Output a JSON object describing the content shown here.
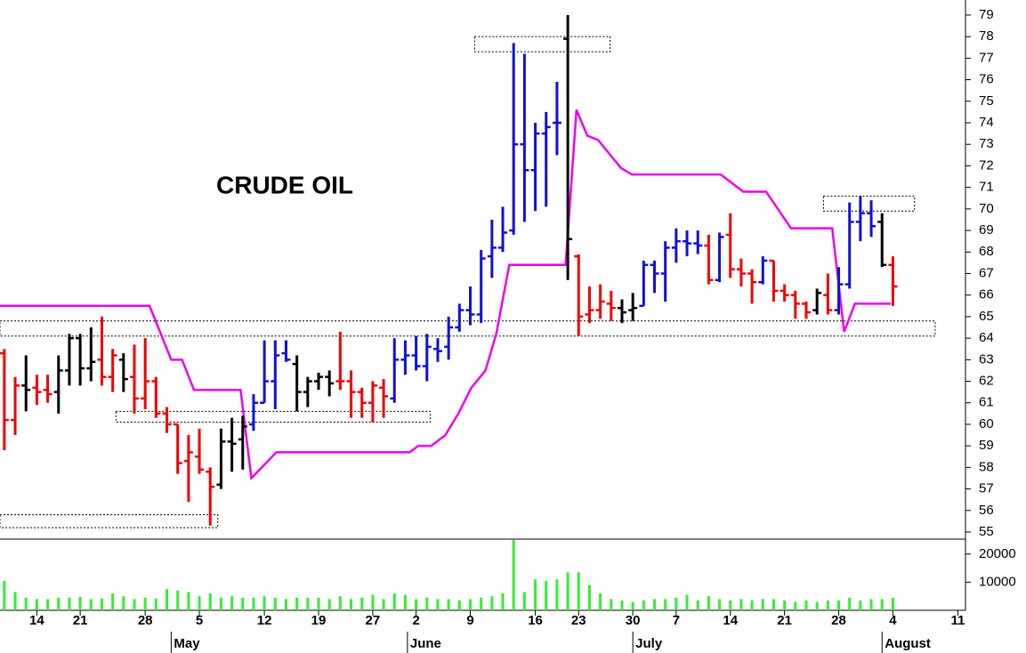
{
  "chart_data": [
    {
      "type": "ohlc",
      "title": "CRUDE OIL",
      "x": [
        -3,
        -2,
        -1,
        0,
        1,
        2,
        3,
        4,
        5,
        6,
        7,
        8,
        9,
        10,
        11,
        12,
        13,
        14,
        15,
        16,
        17,
        18,
        19,
        20,
        21,
        22,
        23,
        24,
        25,
        26,
        27,
        28,
        29,
        30,
        31,
        32,
        33,
        34,
        35,
        36,
        37,
        38,
        39,
        40,
        41,
        42,
        43,
        44,
        45,
        46,
        47,
        48,
        49,
        50,
        51,
        52,
        53,
        54,
        55,
        56,
        57,
        58,
        59,
        60,
        61,
        62,
        63,
        64,
        65,
        66,
        67,
        68,
        69,
        70,
        71,
        72,
        73,
        74,
        75,
        76,
        77,
        78,
        79
      ],
      "open": [
        63.3,
        60.2,
        61.8,
        61.7,
        61.6,
        61.5,
        62.5,
        64,
        62.6,
        63,
        62.2,
        63,
        62.2,
        61.2,
        62,
        60.5,
        60,
        58.3,
        58.5,
        57.8,
        57.2,
        59.2,
        59.3,
        60,
        61,
        62,
        63.3,
        62.8,
        61.5,
        62,
        62.2,
        62,
        62,
        61.5,
        61,
        61.7,
        61.2,
        63,
        63.2,
        62.7,
        63.5,
        63.6,
        64.5,
        65.3,
        65.1,
        67.8,
        68.2,
        69,
        73,
        71.8,
        73.5,
        74,
        77.9,
        67.8,
        65.1,
        65.3,
        65.6,
        65.4,
        65.3,
        65.5,
        67.4,
        67,
        68.2,
        68.5,
        68.4,
        68.3,
        66.7,
        68.8,
        67.2,
        67,
        66.6,
        67.6,
        66.2,
        66,
        65.6,
        65.3,
        66,
        65.3,
        66.5,
        69.4,
        69.8,
        69.4,
        67.4
      ],
      "high": [
        63.5,
        62.2,
        63.2,
        62.3,
        62.3,
        63.2,
        64.2,
        64.2,
        64.5,
        65,
        63.5,
        63.3,
        63.7,
        64,
        62.2,
        60.8,
        60,
        59.5,
        59.8,
        58,
        59.8,
        60.3,
        60.4,
        61.4,
        63.9,
        63.9,
        63.9,
        63.2,
        62.2,
        62.4,
        62.5,
        64.3,
        62.5,
        61.7,
        62,
        62.1,
        64,
        63.9,
        64.1,
        64.2,
        64,
        65,
        65.6,
        66.4,
        68.1,
        69.5,
        70.1,
        77.7,
        77.2,
        74,
        74.5,
        75.9,
        79,
        67.9,
        66.4,
        66.5,
        66.2,
        65.8,
        66.1,
        67.6,
        67.6,
        68.5,
        69.1,
        69,
        69,
        68.8,
        68.9,
        69.8,
        67.7,
        67.2,
        67.8,
        67.6,
        66.5,
        66.2,
        65.7,
        66.3,
        67,
        67.3,
        70.3,
        70.6,
        70.4,
        69.8,
        67.8
      ],
      "low": [
        58.8,
        59.5,
        60.6,
        60.9,
        61,
        60.5,
        61.8,
        61.8,
        62,
        61.8,
        61.5,
        61.5,
        60.5,
        60.7,
        60.3,
        59.6,
        57.7,
        56.4,
        57.7,
        55.3,
        57,
        57.8,
        57.9,
        59.7,
        61,
        60.7,
        62.9,
        60.6,
        60.8,
        61.6,
        61.3,
        61.6,
        60.3,
        60.3,
        60.1,
        60.3,
        61,
        62.3,
        62.5,
        62,
        62.9,
        63,
        64.3,
        64.6,
        64.7,
        66.8,
        68,
        68.8,
        69.4,
        69.9,
        70.1,
        72.5,
        66.7,
        64.1,
        64.7,
        64.9,
        64.8,
        64.7,
        64.8,
        65.5,
        66.1,
        65.7,
        67.5,
        67.8,
        67.9,
        66.5,
        66.6,
        66.8,
        66.4,
        65.6,
        66.5,
        65.7,
        65.7,
        64.9,
        64.9,
        65.1,
        65.1,
        65.1,
        66.3,
        68.5,
        68.7,
        67.3,
        65.5
      ],
      "close": [
        60.2,
        61.8,
        61.6,
        61.5,
        61.4,
        62.5,
        64,
        62.6,
        62.9,
        62.2,
        63.2,
        62.1,
        61.2,
        62,
        60.5,
        60,
        58.2,
        58.7,
        57.9,
        57.1,
        59.2,
        59.1,
        59.9,
        61,
        62,
        63.2,
        63,
        61.5,
        62,
        62.2,
        61.9,
        62,
        61.5,
        61,
        61.8,
        61.3,
        63,
        63.2,
        62.7,
        63.6,
        63.4,
        64.5,
        65.3,
        65.1,
        67.7,
        68.2,
        68.9,
        73,
        71.8,
        73.5,
        73.8,
        74,
        68.6,
        65,
        65.3,
        65.7,
        65.4,
        65.2,
        65.4,
        67.4,
        67,
        68.2,
        68.5,
        68.4,
        68.3,
        66.7,
        68.7,
        67.2,
        67,
        66.6,
        67.6,
        66.2,
        66,
        65.6,
        65.2,
        66.1,
        65.3,
        66.5,
        69.4,
        69.8,
        69.2,
        67.4,
        66.4
      ],
      "colors": [
        "#f00000",
        "#f00000",
        "#000000",
        "#f00000",
        "#f00000",
        "#000000",
        "#000000",
        "#000000",
        "#000000",
        "#f00000",
        "#f00000",
        "#000000",
        "#f00000",
        "#f00000",
        "#f00000",
        "#f00000",
        "#f00000",
        "#f00000",
        "#f00000",
        "#f00000",
        "#000000",
        "#000000",
        "#000000",
        "#1010d8",
        "#1010d8",
        "#1010d8",
        "#1010d8",
        "#000000",
        "#000000",
        "#000000",
        "#000000",
        "#f00000",
        "#f00000",
        "#f00000",
        "#f00000",
        "#f00000",
        "#1010d8",
        "#1010d8",
        "#1010d8",
        "#1010d8",
        "#1010d8",
        "#1010d8",
        "#1010d8",
        "#1010d8",
        "#1010d8",
        "#1010d8",
        "#1010d8",
        "#1010d8",
        "#1010d8",
        "#1010d8",
        "#1010d8",
        "#1010d8",
        "#000000",
        "#f00000",
        "#f00000",
        "#f00000",
        "#f00000",
        "#000000",
        "#000000",
        "#1010d8",
        "#1010d8",
        "#1010d8",
        "#1010d8",
        "#1010d8",
        "#1010d8",
        "#f00000",
        "#1010d8",
        "#f00000",
        "#f00000",
        "#f00000",
        "#1010d8",
        "#f00000",
        "#f00000",
        "#f00000",
        "#f00000",
        "#000000",
        "#f00000",
        "#1010d8",
        "#1010d8",
        "#1010d8",
        "#1010d8",
        "#000000",
        "#f00000"
      ],
      "xlim": [
        -3.4,
        85.7
      ],
      "ylim": [
        54.67,
        79.7
      ],
      "yticks": [
        55,
        56,
        57,
        58,
        59,
        60,
        61,
        62,
        63,
        64,
        65,
        66,
        67,
        68,
        69,
        70,
        71,
        72,
        73,
        74,
        75,
        76,
        77,
        78,
        79
      ],
      "stop_line": {
        "color": "#ee00ee",
        "x": [
          -3.4,
          10.4,
          12.4,
          13.4,
          14.5,
          18.8,
          19.8,
          22.1,
          34.4,
          35.2,
          36.4,
          37.7,
          38.9,
          40.1,
          41.4,
          42.4,
          43.6,
          48.8,
          49.8,
          50.8,
          51.8,
          53.9,
          54.9,
          63.1,
          65.2,
          67.3,
          69.6,
          73.4,
          74.5,
          75.5,
          78.8
        ],
        "values": [
          65.5,
          65.5,
          63,
          63,
          61.6,
          61.6,
          57.5,
          58.7,
          58.7,
          59,
          59,
          59.5,
          60.5,
          61.7,
          62.5,
          64.2,
          67.4,
          67.4,
          74.6,
          73.4,
          73.2,
          71.9,
          71.6,
          71.6,
          70.8,
          70.8,
          69.1,
          69.1,
          64.3,
          65.6,
          65.6
        ]
      },
      "boxes": [
        {
          "x": [
            -3.4,
            16.7
          ],
          "y": [
            55.2,
            55.8
          ]
        },
        {
          "x": [
            7.3,
            36.3
          ],
          "y": [
            60.1,
            60.6
          ]
        },
        {
          "x": [
            -3.4,
            82.9
          ],
          "y": [
            64.1,
            64.8
          ]
        },
        {
          "x": [
            40.4,
            52.9
          ],
          "y": [
            77.3,
            78
          ]
        },
        {
          "x": [
            72.6,
            81
          ],
          "y": [
            69.9,
            70.6
          ]
        }
      ]
    },
    {
      "type": "bar",
      "color": "#33ee33",
      "values": [
        10500,
        6500,
        4500,
        4000,
        4000,
        4500,
        4500,
        4800,
        4000,
        4200,
        6000,
        5000,
        4000,
        4500,
        4200,
        7500,
        7000,
        6500,
        5000,
        6000,
        4500,
        5000,
        4500,
        4500,
        5000,
        4500,
        4000,
        4500,
        4500,
        4500,
        4000,
        5000,
        4000,
        4500,
        5500,
        4000,
        6000,
        5500,
        4000,
        4500,
        4000,
        4000,
        3500,
        4000,
        4500,
        5000,
        6000,
        25000,
        6500,
        11000,
        10500,
        11000,
        13500,
        13500,
        9000,
        6000,
        4000,
        3500,
        3000,
        3500,
        4000,
        4000,
        4500,
        5500,
        3500,
        5000,
        4000,
        3500,
        4000,
        3500,
        4000,
        4000,
        3500,
        3000,
        3500,
        3000,
        3500,
        3500,
        4500,
        3500,
        4000,
        4000,
        4500
      ],
      "ylim": [
        0,
        25000
      ],
      "yticks": [
        10000,
        20000
      ],
      "xticks": [
        {
          "value": 0,
          "label": "14"
        },
        {
          "value": 4,
          "label": "21"
        },
        {
          "value": 10,
          "label": "28"
        },
        {
          "value": 15,
          "label": "5"
        },
        {
          "value": 21,
          "label": "12"
        },
        {
          "value": 26,
          "label": "19"
        },
        {
          "value": 31,
          "label": "27"
        },
        {
          "value": 35,
          "label": "2"
        },
        {
          "value": 40,
          "label": "9"
        },
        {
          "value": 46,
          "label": "16"
        },
        {
          "value": 50,
          "label": "23"
        },
        {
          "value": 55,
          "label": "30"
        },
        {
          "value": 59,
          "label": "7"
        },
        {
          "value": 64,
          "label": "14"
        },
        {
          "value": 69,
          "label": "21"
        },
        {
          "value": 74,
          "label": "28"
        },
        {
          "value": 79,
          "label": "4"
        },
        {
          "value": 85,
          "label": "11"
        }
      ],
      "month_ticks": [
        {
          "value": 12.4,
          "label": "May"
        },
        {
          "value": 34.2,
          "label": "June"
        },
        {
          "value": 55,
          "label": "July"
        },
        {
          "value": 78,
          "label": "August"
        }
      ]
    }
  ]
}
